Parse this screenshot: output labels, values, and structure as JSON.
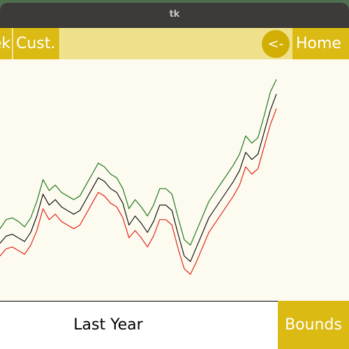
{
  "window": {
    "title": "tk"
  },
  "toolbar": {
    "week_label": "Week",
    "custom_label": "Cust.",
    "back_label": "<-",
    "home_label": "Home"
  },
  "footer": {
    "range_label": "Last Year",
    "bounds_label": "Bounds"
  },
  "colors": {
    "button": "#dbba14",
    "toolbar": "#efe18b",
    "plot_background": "#fdfaef",
    "price": "#000000",
    "upper_bound": "#1e7a1e",
    "lower_bound": "#e0261b"
  },
  "chart_data": {
    "type": "line",
    "series": [
      {
        "color": "#000000",
        "values": [
          42,
          46,
          47,
          45,
          43,
          48,
          57,
          69,
          63,
          66,
          62,
          60,
          58,
          60,
          66,
          72,
          78,
          76,
          72,
          70,
          64,
          52,
          57,
          53,
          48,
          54,
          63,
          63,
          60,
          47,
          35,
          32,
          40,
          48,
          56,
          61,
          66,
          71,
          76,
          82,
          92,
          88,
          91,
          103,
          115,
          124
        ]
      },
      {
        "color": "#1e7a1e",
        "values": [
          50,
          55,
          56,
          54,
          51,
          56,
          65,
          77,
          71,
          74,
          70,
          68,
          66,
          68,
          74,
          80,
          86,
          84,
          80,
          78,
          72,
          61,
          66,
          62,
          57,
          63,
          72,
          72,
          69,
          56,
          44,
          41,
          49,
          57,
          65,
          70,
          75,
          80,
          85,
          91,
          101,
          97,
          100,
          112,
          125,
          132
        ]
      },
      {
        "color": "#e0261b",
        "values": [
          35,
          39,
          40,
          38,
          36,
          41,
          49,
          61,
          55,
          58,
          54,
          52,
          50,
          52,
          58,
          64,
          70,
          68,
          64,
          62,
          56,
          45,
          49,
          45,
          40,
          46,
          55,
          55,
          52,
          39,
          28,
          25,
          32,
          40,
          48,
          53,
          58,
          63,
          68,
          74,
          84,
          80,
          83,
          95,
          107,
          116
        ]
      }
    ]
  }
}
